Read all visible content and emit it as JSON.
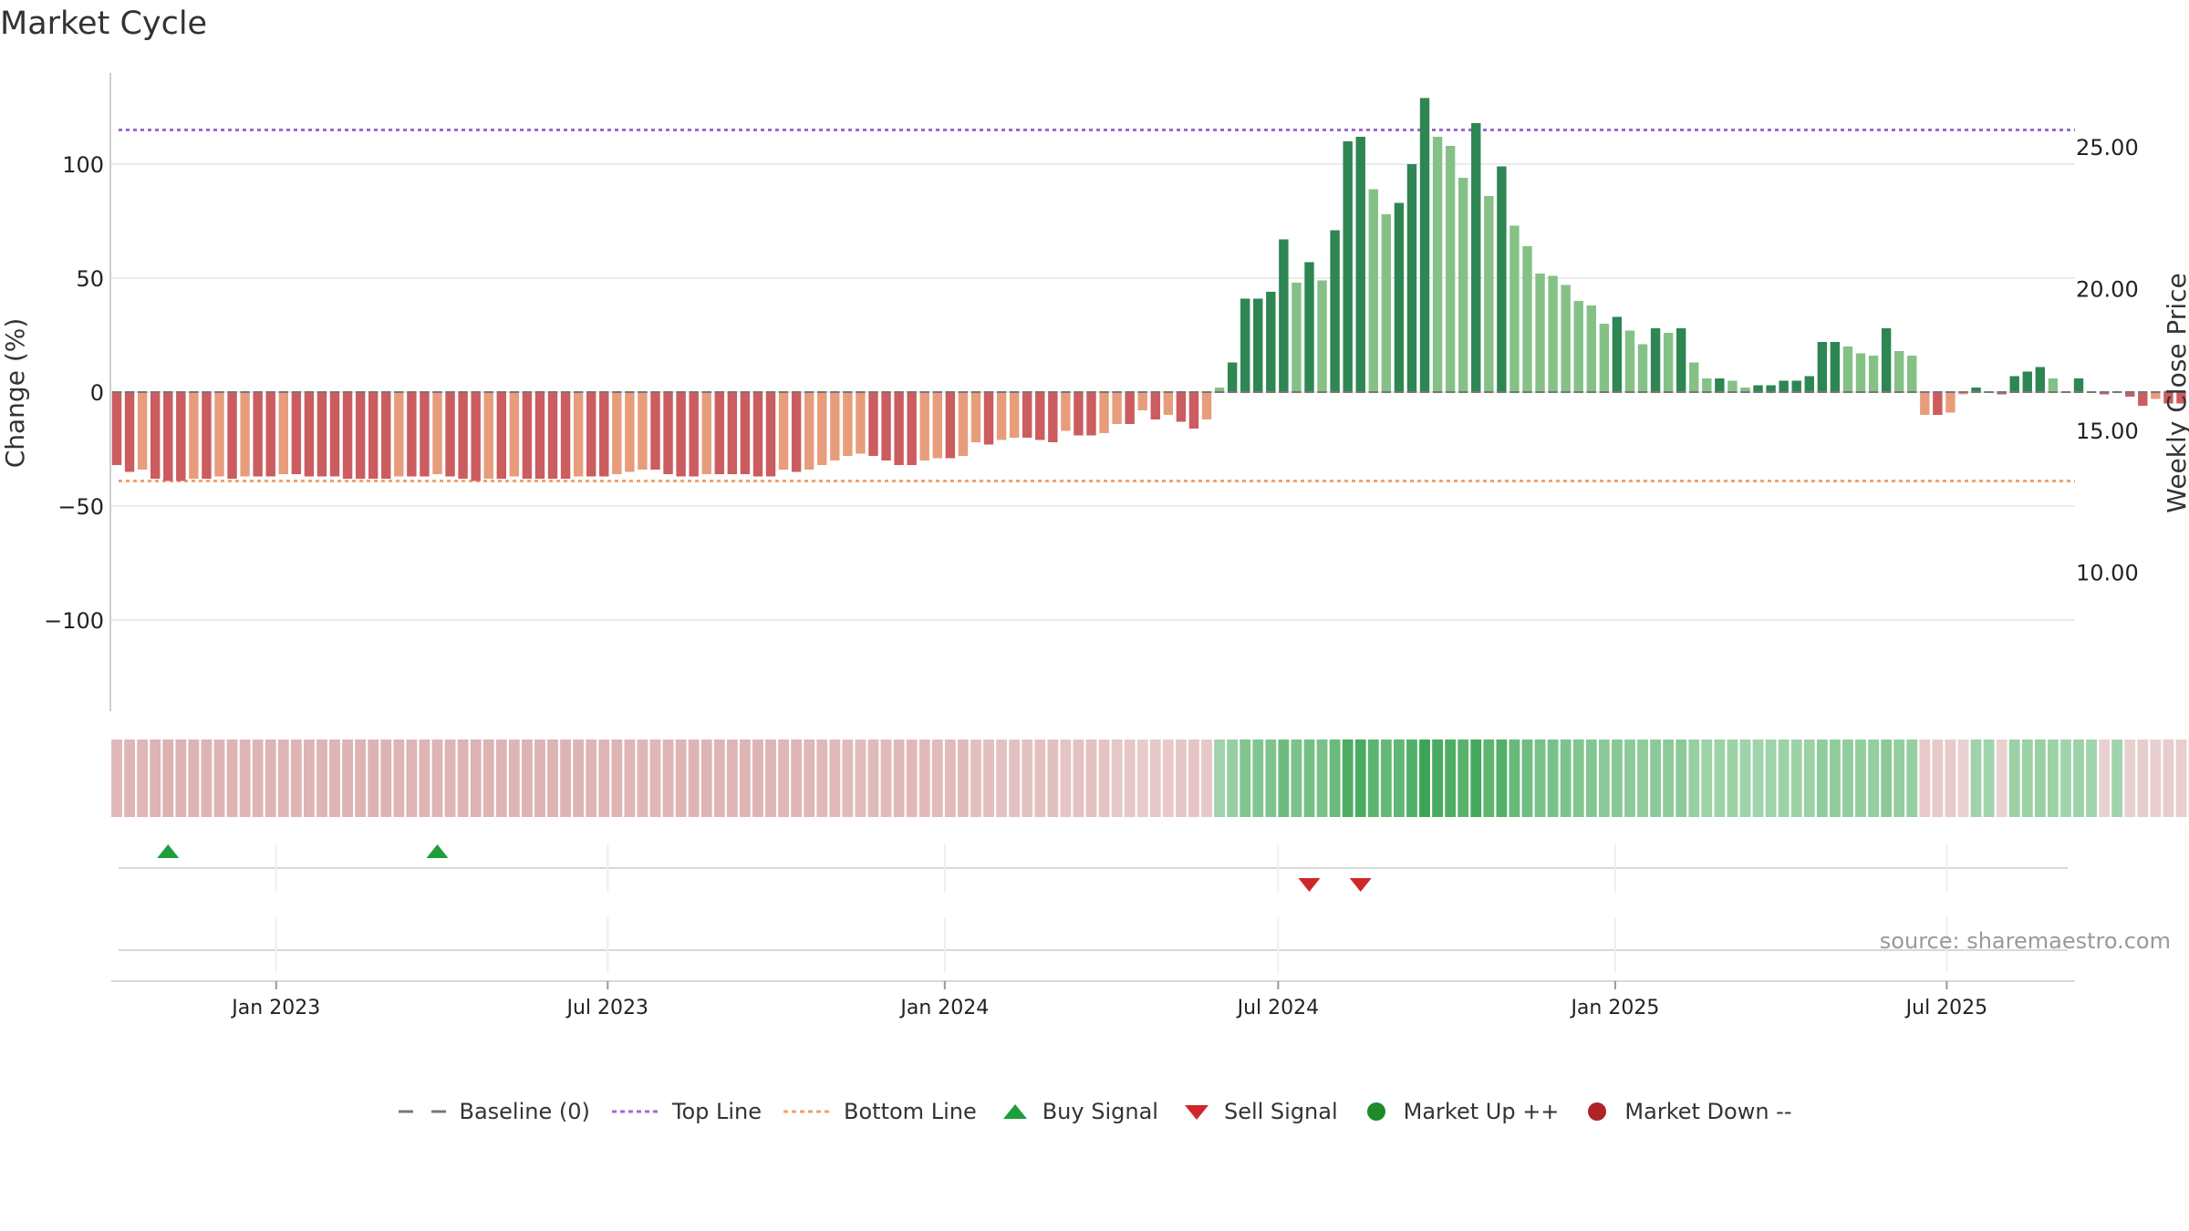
{
  "chart_data": {
    "type": "bar",
    "title": "Market Cycle",
    "ylabel": "Change (%)",
    "y2label": "Weekly Close Price",
    "ylim": [
      -140,
      140
    ],
    "y2lim": [
      5.1,
      27.6
    ],
    "yticks": [
      100,
      50,
      0,
      -50,
      -100
    ],
    "ytick_labels": [
      "100",
      "50",
      "0",
      "−50",
      "−100"
    ],
    "y2ticks": [
      25,
      20,
      15,
      10
    ],
    "y2tick_labels": [
      "25.00",
      "20.00",
      "15.00",
      "10.00"
    ],
    "top_line": 115,
    "bottom_line": -39,
    "xlim": [
      "2022-10-03",
      "2025-09-09"
    ],
    "xticks": [
      "2023-01-01",
      "2023-07-01",
      "2024-01-01",
      "2024-07-01",
      "2025-01-01",
      "2025-07-01"
    ],
    "xtick_labels": [
      "Jan 2023",
      "Jul 2023",
      "Jan 2024",
      "Jul 2024",
      "Jan 2025",
      "Jul 2025"
    ],
    "start_date": "2022-10-06",
    "values": [
      -32,
      -35,
      -34,
      -38,
      -39,
      -39,
      -38,
      -38,
      -37,
      -38,
      -37,
      -37,
      -37,
      -36,
      -36,
      -37,
      -37,
      -37,
      -38,
      -38,
      -38,
      -38,
      -37,
      -37,
      -37,
      -36,
      -37,
      -38,
      -39,
      -38,
      -38,
      -37,
      -38,
      -38,
      -38,
      -38,
      -37,
      -37,
      -37,
      -36,
      -35,
      -34,
      -34,
      -36,
      -37,
      -37,
      -36,
      -36,
      -36,
      -36,
      -37,
      -37,
      -34,
      -35,
      -34,
      -32,
      -30,
      -28,
      -27,
      -28,
      -30,
      -32,
      -32,
      -30,
      -29,
      -29,
      -28,
      -22,
      -23,
      -21,
      -20,
      -20,
      -21,
      -22,
      -17,
      -19,
      -19,
      -18,
      -14,
      -14,
      -8,
      -12,
      -10,
      -13,
      -16,
      -12,
      2,
      13,
      41,
      41,
      44,
      67,
      48,
      57,
      49,
      71,
      110,
      112,
      89,
      78,
      83,
      100,
      129,
      112,
      108,
      94,
      118,
      86,
      99,
      73,
      64,
      52,
      51,
      47,
      40,
      38,
      30,
      33,
      27,
      21,
      28,
      26,
      28,
      13,
      6,
      6,
      5,
      2,
      3,
      3,
      5,
      5,
      7,
      22,
      22,
      20,
      17,
      16,
      28,
      18,
      16,
      -10,
      -10,
      -9,
      -1,
      2,
      0,
      -1,
      7,
      9,
      11,
      6,
      0,
      6,
      0,
      -1,
      0,
      -2,
      -6,
      -3,
      -5,
      -5,
      -7,
      -9,
      -4,
      -2
    ],
    "price_line": null,
    "buy_signals": [
      "2022-11-03",
      "2023-03-30"
    ],
    "sell_signals": [
      "2024-07-18",
      "2024-08-15"
    ],
    "source": "source: sharemaestro.com",
    "legend": [
      "Baseline (0)",
      "Top Line",
      "Bottom Line",
      "Buy Signal",
      "Sell Signal",
      "Market Up ++",
      "Market Down --"
    ],
    "legend_placement": "bottom-center",
    "grid": true
  },
  "colors": {
    "up_dark": "#2e8653",
    "up_light": "#85c186",
    "down_dark": "#cb5c5f",
    "down_light": "#e79d7c",
    "top_line": "#9b6bd6",
    "bottom_line": "#f0a36c",
    "buy": "#1f9e3c",
    "sell": "#d0262a",
    "market_up": "#1f8a2a",
    "market_down": "#b02428",
    "baseline": "#777777"
  }
}
